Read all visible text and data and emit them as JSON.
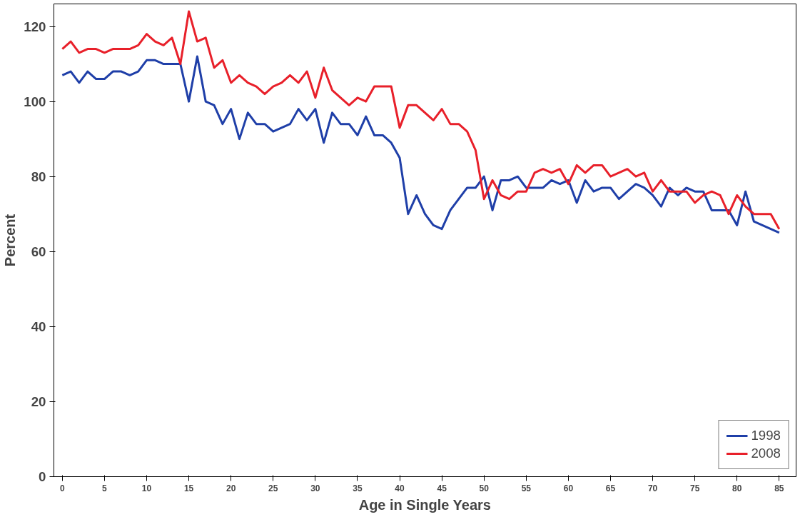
{
  "chart_data": {
    "type": "line",
    "xlabel": "Age in Single Years",
    "ylabel": "Percent",
    "x": [
      0,
      1,
      2,
      3,
      4,
      5,
      6,
      7,
      8,
      9,
      10,
      11,
      12,
      13,
      14,
      15,
      16,
      17,
      18,
      19,
      20,
      21,
      22,
      23,
      24,
      25,
      26,
      27,
      28,
      29,
      30,
      31,
      32,
      33,
      34,
      35,
      36,
      37,
      38,
      39,
      40,
      41,
      42,
      43,
      44,
      45,
      46,
      47,
      48,
      49,
      50,
      51,
      52,
      53,
      54,
      55,
      56,
      57,
      58,
      59,
      60,
      61,
      62,
      63,
      64,
      65,
      66,
      67,
      68,
      69,
      70,
      71,
      72,
      73,
      74,
      75,
      76,
      77,
      78,
      79,
      80,
      81,
      82,
      83,
      84,
      85
    ],
    "series": [
      {
        "name": "1998",
        "color": "#1f3fa8",
        "values": [
          107,
          108,
          105,
          108,
          106,
          106,
          108,
          108,
          107,
          108,
          111,
          111,
          110,
          110,
          110,
          100,
          112,
          100,
          99,
          94,
          98,
          90,
          97,
          94,
          94,
          92,
          93,
          94,
          98,
          95,
          98,
          89,
          97,
          94,
          94,
          91,
          96,
          91,
          91,
          89,
          85,
          70,
          75,
          70,
          67,
          66,
          71,
          74,
          77,
          77,
          80,
          71,
          79,
          79,
          80,
          77,
          77,
          77,
          79,
          78,
          79,
          73,
          79,
          76,
          77,
          77,
          74,
          76,
          78,
          77,
          75,
          72,
          77,
          75,
          77,
          76,
          76,
          71,
          71,
          71,
          67,
          76,
          68,
          67,
          66,
          65
        ]
      },
      {
        "name": "2008",
        "color": "#e8202a",
        "values": [
          114,
          116,
          113,
          114,
          114,
          113,
          114,
          114,
          114,
          115,
          118,
          116,
          115,
          117,
          110,
          124,
          116,
          117,
          109,
          111,
          105,
          107,
          105,
          104,
          102,
          104,
          105,
          107,
          105,
          108,
          101,
          109,
          103,
          101,
          99,
          101,
          100,
          104,
          104,
          104,
          93,
          99,
          99,
          97,
          95,
          98,
          94,
          94,
          92,
          87,
          74,
          79,
          75,
          74,
          76,
          76,
          81,
          82,
          81,
          82,
          78,
          83,
          81,
          83,
          83,
          80,
          81,
          82,
          80,
          81,
          76,
          79,
          76,
          76,
          76,
          73,
          75,
          76,
          75,
          70,
          75,
          72,
          70,
          70,
          70,
          66
        ]
      }
    ],
    "xlim": [
      -1,
      87
    ],
    "ylim": [
      0,
      126
    ],
    "xticks": [
      0,
      5,
      10,
      15,
      20,
      25,
      30,
      35,
      40,
      45,
      50,
      55,
      60,
      65,
      70,
      75,
      80,
      85
    ],
    "yticks": [
      0,
      20,
      40,
      60,
      80,
      100,
      120
    ],
    "grid": false,
    "legend": "bottom right",
    "line_style": "solid",
    "marker": "none"
  }
}
